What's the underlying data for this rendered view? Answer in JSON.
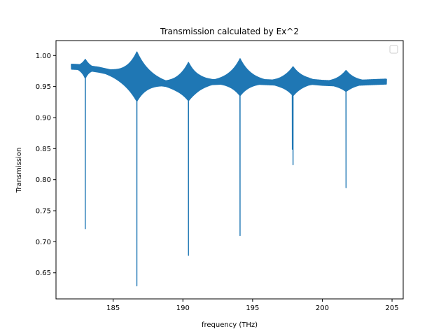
{
  "chart_data": {
    "type": "line",
    "title": "Transmission calculated by Ex^2",
    "xlabel": "frequency (THz)",
    "ylabel": "Transmission",
    "xlim": [
      180.9,
      205.8
    ],
    "ylim": [
      0.608,
      1.024
    ],
    "xticks": [
      185,
      190,
      195,
      200,
      205
    ],
    "yticks": [
      0.65,
      0.7,
      0.75,
      0.8,
      0.85,
      0.9,
      0.95,
      1.0
    ],
    "xtick_labels": [
      "185",
      "190",
      "195",
      "200",
      "205"
    ],
    "ytick_labels": [
      "0.65",
      "0.70",
      "0.75",
      "0.80",
      "0.85",
      "0.90",
      "0.95",
      "1.00"
    ],
    "grid": false,
    "legend": {
      "position": "top-right",
      "entries": []
    },
    "series": [
      {
        "color": "#1f77b4",
        "x_range": [
          182.0,
          204.6
        ],
        "baseline": [
          [
            182.0,
            0.982
          ],
          [
            182.9,
            0.981
          ],
          [
            183.4,
            0.979
          ],
          [
            184.0,
            0.977
          ],
          [
            185.0,
            0.972
          ],
          [
            186.0,
            0.966
          ],
          [
            186.7,
            0.962
          ],
          [
            187.5,
            0.959
          ],
          [
            188.5,
            0.955
          ],
          [
            189.5,
            0.952
          ],
          [
            190.4,
            0.951
          ],
          [
            191.2,
            0.955
          ],
          [
            192.0,
            0.957
          ],
          [
            193.0,
            0.958
          ],
          [
            194.1,
            0.959
          ],
          [
            195.0,
            0.958
          ],
          [
            196.0,
            0.957
          ],
          [
            197.0,
            0.956
          ],
          [
            197.9,
            0.957
          ],
          [
            199.0,
            0.958
          ],
          [
            200.0,
            0.956
          ],
          [
            201.0,
            0.955
          ],
          [
            201.7,
            0.955
          ],
          [
            202.5,
            0.956
          ],
          [
            203.5,
            0.957
          ],
          [
            204.6,
            0.958
          ]
        ],
        "resonances": [
          {
            "x": 183.0,
            "dip": 0.721,
            "max": 0.994,
            "min": 0.963,
            "width": 0.35
          },
          {
            "x": 186.7,
            "dip": 0.629,
            "max": 1.006,
            "min": 0.926,
            "width": 0.9
          },
          {
            "x": 190.4,
            "dip": 0.678,
            "max": 0.989,
            "min": 0.927,
            "width": 0.85
          },
          {
            "x": 194.1,
            "dip": 0.71,
            "max": 0.995,
            "min": 0.935,
            "width": 0.8
          },
          {
            "x": 197.9,
            "dip": 0.824,
            "max": 0.982,
            "min": 0.935,
            "width": 0.8,
            "secondary_dip": 0.849
          },
          {
            "x": 201.7,
            "dip": 0.787,
            "max": 0.976,
            "min": 0.942,
            "width": 0.75
          }
        ],
        "small_wiggle": {
          "x": 192.7,
          "value": 0.959
        },
        "oscillation_amplitude": 0.004
      }
    ]
  },
  "colors": {
    "line": "#1f77b4",
    "axes": "#000000",
    "background": "#ffffff",
    "legend_edge": "#cccccc"
  }
}
